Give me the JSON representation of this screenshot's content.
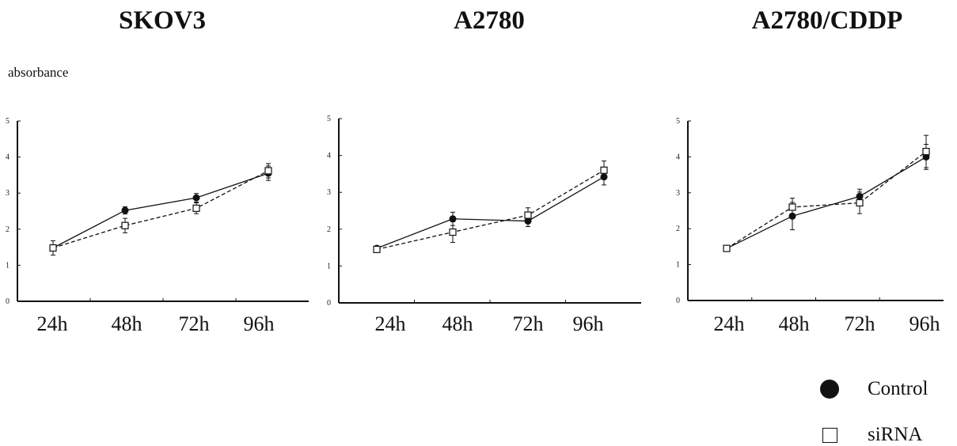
{
  "page": {
    "titles": [
      "SKOV3",
      "A2780",
      "A2780/CDDP"
    ],
    "ylabel": "absorbance",
    "legend": [
      {
        "label": "Control",
        "marker": "filled-circle"
      },
      {
        "label": "siRNA",
        "marker": "open-square"
      }
    ]
  },
  "chart_data": [
    {
      "type": "line",
      "title": "SKOV3",
      "ylabel": "absorbance",
      "categories": [
        "24h",
        "48h",
        "72h",
        "96h"
      ],
      "yticks": [
        "0",
        "1",
        "2",
        "3",
        "4",
        "5"
      ],
      "ylim": [
        0,
        5
      ],
      "series": [
        {
          "name": "Control",
          "values": [
            1.48,
            2.52,
            2.87,
            3.55
          ],
          "errors": [
            0.08,
            0.1,
            0.12,
            0.2
          ],
          "line": "solid",
          "marker": "filled-circle",
          "color": "#111111"
        },
        {
          "name": "siRNA",
          "values": [
            1.48,
            2.1,
            2.58,
            3.62
          ],
          "errors": [
            0.2,
            0.2,
            0.15,
            0.2
          ],
          "line": "dashed",
          "marker": "open-square",
          "color": "#111111"
        }
      ]
    },
    {
      "type": "line",
      "title": "A2780",
      "ylabel": "",
      "categories": [
        "24h",
        "48h",
        "72h",
        "96h"
      ],
      "yticks": [
        "0",
        "1",
        "2",
        "3",
        "4",
        "5"
      ],
      "ylim": [
        0,
        5
      ],
      "series": [
        {
          "name": "Control",
          "values": [
            1.48,
            2.28,
            2.22,
            3.42
          ],
          "errors": [
            0.05,
            0.18,
            0.15,
            0.22
          ],
          "line": "solid",
          "marker": "filled-circle",
          "color": "#111111"
        },
        {
          "name": "siRNA",
          "values": [
            1.45,
            1.92,
            2.38,
            3.6
          ],
          "errors": [
            0.05,
            0.28,
            0.2,
            0.25
          ],
          "line": "dashed",
          "marker": "open-square",
          "color": "#111111"
        }
      ]
    },
    {
      "type": "line",
      "title": "A2780/CDDP",
      "ylabel": "",
      "categories": [
        "24h",
        "48h",
        "72h",
        "96h"
      ],
      "yticks": [
        "0",
        "1",
        "2",
        "3",
        "4",
        "5"
      ],
      "ylim": [
        0,
        5
      ],
      "series": [
        {
          "name": "Control",
          "values": [
            1.45,
            2.35,
            2.9,
            4.0
          ],
          "errors": [
            0.05,
            0.38,
            0.2,
            0.35
          ],
          "line": "solid",
          "marker": "filled-circle",
          "color": "#111111"
        },
        {
          "name": "siRNA",
          "values": [
            1.45,
            2.6,
            2.72,
            4.15
          ],
          "errors": [
            0.05,
            0.25,
            0.3,
            0.45
          ],
          "line": "dashed",
          "marker": "open-square",
          "color": "#111111"
        }
      ]
    }
  ]
}
